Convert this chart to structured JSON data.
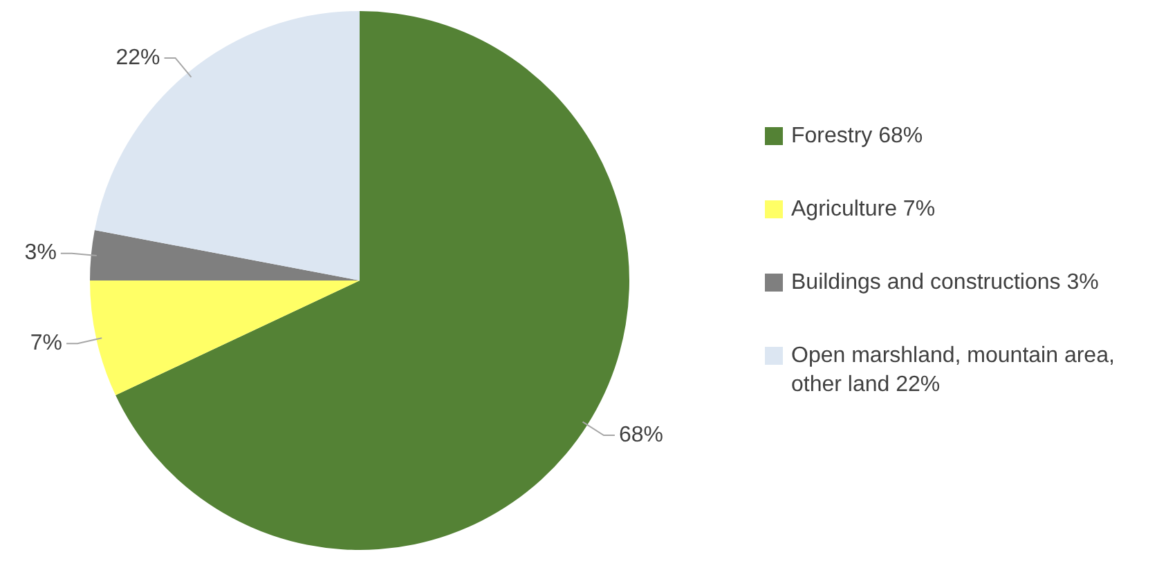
{
  "chart_data": {
    "type": "pie",
    "categories": [
      "Forestry 68%",
      "Agriculture 7%",
      "Buildings and constructions 3%",
      "Open marshland, mountain area, other land 22%"
    ],
    "values": [
      68,
      7,
      3,
      22
    ],
    "colors": [
      "#548235",
      "#ffff66",
      "#7f7f7f",
      "#dce6f2"
    ],
    "value_labels": [
      "68%",
      "7%",
      "3%",
      "22%"
    ],
    "legend": "right"
  }
}
